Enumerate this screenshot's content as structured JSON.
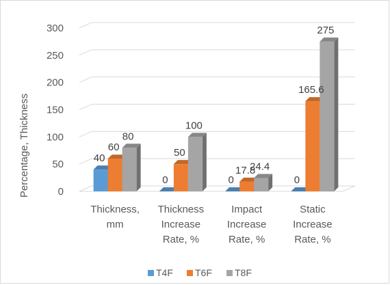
{
  "chart_data": {
    "type": "bar",
    "style": "3d-clustered-column",
    "categories": [
      [
        "Thickness,",
        "mm"
      ],
      [
        "Thickness",
        "Increase",
        "Rate, %"
      ],
      [
        "Impact",
        "Increase",
        "Rate, %"
      ],
      [
        "Static",
        "Increase",
        "Rate, %"
      ]
    ],
    "series": [
      {
        "name": "T4F",
        "color": "#5b9bd5",
        "values": [
          40,
          0,
          0,
          0
        ],
        "labels": [
          "40",
          "0",
          "0",
          "0"
        ]
      },
      {
        "name": "T6F",
        "color": "#ed7d31",
        "values": [
          60,
          50,
          17.8,
          165.6
        ],
        "labels": [
          "60",
          "50",
          "17.8",
          "165.6"
        ]
      },
      {
        "name": "T8F",
        "color": "#a5a5a5",
        "values": [
          80,
          100,
          24.4,
          275
        ],
        "labels": [
          "80",
          "100",
          "24.4",
          "275"
        ]
      }
    ],
    "ylabel": "Percentage, Thickness",
    "ylim": [
      0,
      300
    ],
    "yticks": [
      0,
      50,
      100,
      150,
      200,
      250,
      300
    ],
    "grid": true,
    "legend": "bottom"
  }
}
